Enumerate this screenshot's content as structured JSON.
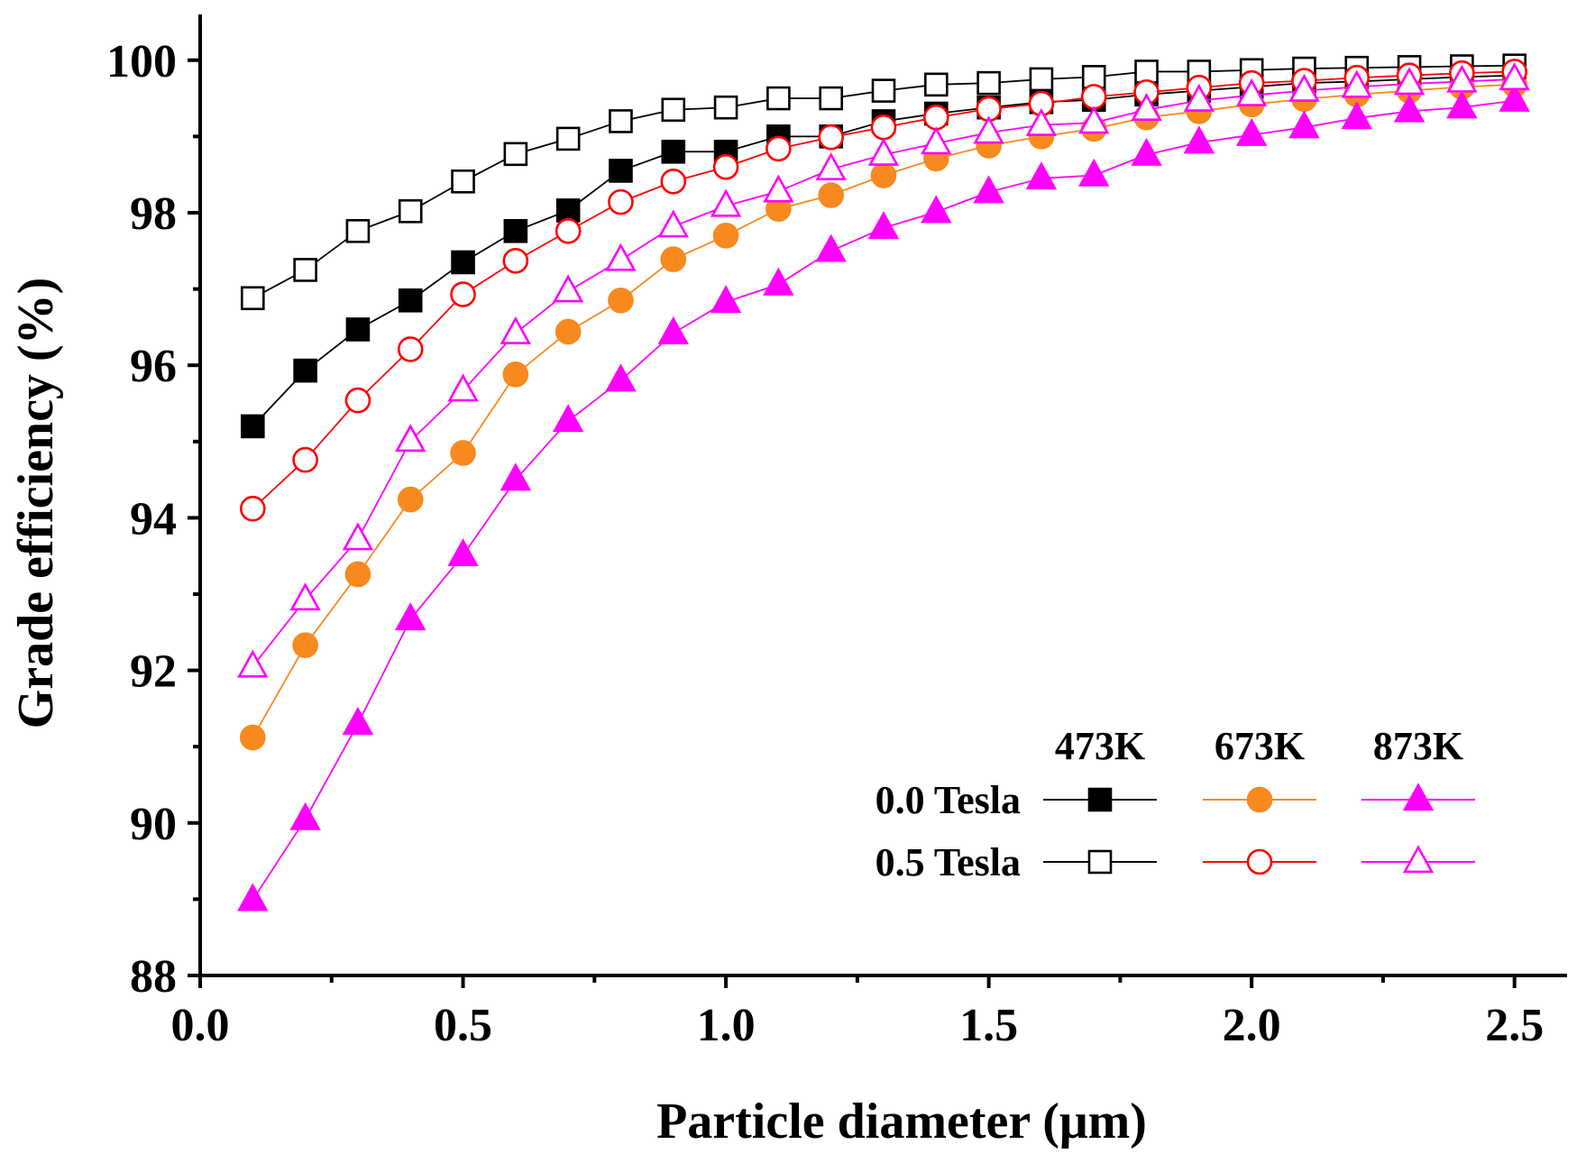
{
  "chart_data": {
    "type": "line",
    "xlabel": "Particle diameter (μm)",
    "ylabel": "Grade efficiency (%)",
    "xlim": [
      0.0,
      2.6
    ],
    "ylim": [
      88,
      100.6
    ],
    "x_ticks": [
      "0.0",
      "0.5",
      "1.0",
      "1.5",
      "2.0",
      "2.5"
    ],
    "y_ticks": [
      "88",
      "90",
      "92",
      "94",
      "96",
      "98",
      "100"
    ],
    "grid": false,
    "legend": {
      "placement": "bottom-right",
      "column_headers": [
        "473K",
        "673K",
        "873K"
      ],
      "row_labels": [
        "0.0 Tesla",
        "0.5 Tesla"
      ]
    },
    "x": [
      0.1,
      0.2,
      0.3,
      0.4,
      0.5,
      0.6,
      0.7,
      0.8,
      0.9,
      1.0,
      1.1,
      1.2,
      1.3,
      1.4,
      1.5,
      1.6,
      1.7,
      1.8,
      1.9,
      2.0,
      2.1,
      2.2,
      2.3,
      2.4,
      2.5
    ],
    "series": [
      {
        "temperature": "473K",
        "field": "0.0 Tesla",
        "color": "#000000",
        "marker": "square",
        "filled": true,
        "values": [
          95.2,
          95.93,
          96.47,
          96.85,
          97.35,
          97.76,
          98.03,
          98.55,
          98.8,
          98.8,
          99.0,
          99.0,
          99.2,
          99.3,
          99.38,
          99.45,
          99.48,
          99.55,
          99.6,
          99.65,
          99.7,
          99.72,
          99.75,
          99.78,
          99.8
        ]
      },
      {
        "temperature": "473K",
        "field": "0.5 Tesla",
        "color": "#000000",
        "marker": "square",
        "filled": false,
        "values": [
          96.88,
          97.25,
          97.76,
          98.02,
          98.41,
          98.77,
          98.97,
          99.2,
          99.35,
          99.38,
          99.5,
          99.5,
          99.6,
          99.68,
          99.7,
          99.75,
          99.78,
          99.85,
          99.85,
          99.87,
          99.89,
          99.9,
          99.91,
          99.92,
          99.93
        ]
      },
      {
        "temperature": "673K",
        "field": "0.0 Tesla",
        "color": "#f7891f",
        "marker": "circle",
        "filled": true,
        "values": [
          91.12,
          92.33,
          93.26,
          94.24,
          94.85,
          95.88,
          96.44,
          96.85,
          97.39,
          97.7,
          98.05,
          98.23,
          98.49,
          98.71,
          98.88,
          99.0,
          99.1,
          99.25,
          99.33,
          99.42,
          99.49,
          99.55,
          99.6,
          99.65,
          99.68
        ]
      },
      {
        "temperature": "673K",
        "field": "0.5 Tesla",
        "color": "#ff0000",
        "marker": "circle",
        "filled": false,
        "values": [
          94.12,
          94.76,
          95.54,
          96.21,
          96.93,
          97.37,
          97.76,
          98.14,
          98.41,
          98.6,
          98.84,
          98.99,
          99.12,
          99.25,
          99.36,
          99.43,
          99.52,
          99.58,
          99.64,
          99.7,
          99.73,
          99.77,
          99.8,
          99.83,
          99.85
        ]
      },
      {
        "temperature": "873K",
        "field": "0.0 Tesla",
        "color": "#ff00ff",
        "marker": "triangle",
        "filled": true,
        "values": [
          88.99,
          90.05,
          91.3,
          92.67,
          93.51,
          94.5,
          95.27,
          95.8,
          96.42,
          96.83,
          97.06,
          97.5,
          97.8,
          98.01,
          98.27,
          98.45,
          98.49,
          98.76,
          98.92,
          99.02,
          99.12,
          99.24,
          99.33,
          99.38,
          99.47
        ]
      },
      {
        "temperature": "873K",
        "field": "0.5 Tesla",
        "color": "#ff00ff",
        "marker": "triangle",
        "filled": false,
        "values": [
          92.05,
          92.93,
          93.72,
          95.01,
          95.67,
          96.42,
          96.97,
          97.38,
          97.82,
          98.09,
          98.28,
          98.57,
          98.76,
          98.91,
          99.05,
          99.15,
          99.18,
          99.35,
          99.47,
          99.54,
          99.6,
          99.65,
          99.69,
          99.72,
          99.75
        ]
      }
    ]
  }
}
